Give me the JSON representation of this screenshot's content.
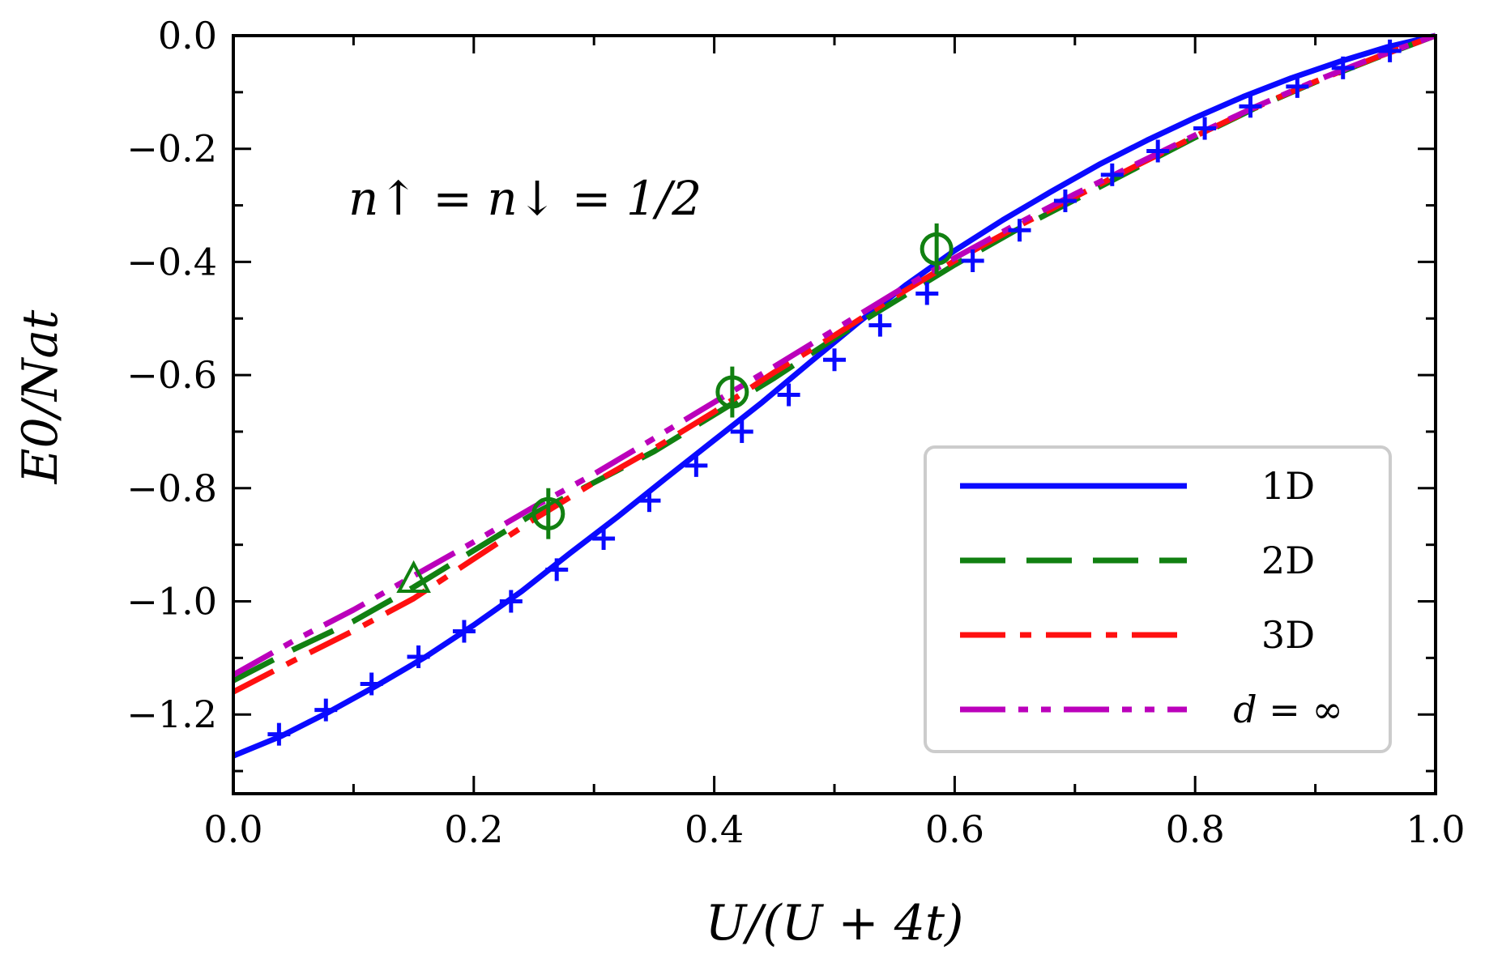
{
  "chart_data": {
    "type": "line",
    "xlabel": "U/(U + 4t)",
    "ylabel": "E0/Nat",
    "xlim": [
      0.0,
      1.0
    ],
    "ylim": [
      -1.34,
      0.0
    ],
    "xticks": [
      "0.0",
      "0.2",
      "0.4",
      "0.6",
      "0.8",
      "1.0"
    ],
    "yticks": [
      "0.0",
      "−0.2",
      "−0.4",
      "−0.6",
      "−0.8",
      "−1.0",
      "−1.2"
    ],
    "xtick_values": [
      0.0,
      0.2,
      0.4,
      0.6,
      0.8,
      1.0
    ],
    "ytick_values": [
      0.0,
      -0.2,
      -0.4,
      -0.6,
      -0.8,
      -1.0,
      -1.2
    ],
    "annotation": "n↑ = n↓ = 1/2",
    "legend_position": "lower-right",
    "series": [
      {
        "name": "1D",
        "color": "#0a0aff",
        "style": "solid",
        "x": [
          0.0,
          0.04,
          0.08,
          0.12,
          0.16,
          0.2,
          0.24,
          0.28,
          0.32,
          0.36,
          0.4,
          0.44,
          0.48,
          0.52,
          0.56,
          0.6,
          0.64,
          0.68,
          0.72,
          0.76,
          0.8,
          0.84,
          0.88,
          0.92,
          0.96,
          1.0
        ],
        "y": [
          -1.273,
          -1.238,
          -1.195,
          -1.148,
          -1.098,
          -1.042,
          -0.982,
          -0.915,
          -0.85,
          -0.782,
          -0.715,
          -0.648,
          -0.577,
          -0.507,
          -0.44,
          -0.38,
          -0.326,
          -0.276,
          -0.228,
          -0.185,
          -0.145,
          -0.108,
          -0.075,
          -0.046,
          -0.02,
          0.0
        ]
      },
      {
        "name": "2D",
        "color": "#118011",
        "style": "dashed",
        "x": [
          0.0,
          0.05,
          0.1,
          0.15,
          0.2,
          0.25,
          0.3,
          0.35,
          0.4,
          0.45,
          0.5,
          0.55,
          0.6,
          0.65,
          0.7,
          0.75,
          0.8,
          0.85,
          0.9,
          0.95,
          1.0
        ],
        "y": [
          -1.14,
          -1.085,
          -1.035,
          -0.975,
          -0.91,
          -0.845,
          -0.79,
          -0.735,
          -0.67,
          -0.605,
          -0.535,
          -0.47,
          -0.405,
          -0.345,
          -0.29,
          -0.235,
          -0.18,
          -0.128,
          -0.082,
          -0.04,
          0.0
        ]
      },
      {
        "name": "3D",
        "color": "#ff1010",
        "style": "dashdot",
        "x": [
          0.0,
          0.05,
          0.1,
          0.15,
          0.2,
          0.25,
          0.3,
          0.35,
          0.4,
          0.45,
          0.5,
          0.55,
          0.6,
          0.65,
          0.7,
          0.75,
          0.8,
          0.85,
          0.9,
          0.95,
          1.0
        ],
        "y": [
          -1.16,
          -1.105,
          -1.052,
          -0.995,
          -0.925,
          -0.855,
          -0.79,
          -0.73,
          -0.665,
          -0.595,
          -0.53,
          -0.462,
          -0.398,
          -0.34,
          -0.285,
          -0.231,
          -0.178,
          -0.127,
          -0.081,
          -0.039,
          0.0
        ]
      },
      {
        "name": "d = ∞",
        "color": "#bb00bb",
        "style": "dashdotdot",
        "x": [
          0.0,
          0.05,
          0.1,
          0.15,
          0.2,
          0.25,
          0.3,
          0.35,
          0.4,
          0.45,
          0.5,
          0.55,
          0.6,
          0.65,
          0.7,
          0.75,
          0.8,
          0.85,
          0.9,
          0.95,
          1.0
        ],
        "y": [
          -1.13,
          -1.07,
          -1.015,
          -0.955,
          -0.895,
          -0.833,
          -0.775,
          -0.712,
          -0.648,
          -0.585,
          -0.52,
          -0.455,
          -0.393,
          -0.335,
          -0.28,
          -0.228,
          -0.176,
          -0.126,
          -0.08,
          -0.038,
          0.0
        ]
      }
    ],
    "markers": [
      {
        "shape": "plus",
        "color": "#0a0aff",
        "x": [
          0.038,
          0.077,
          0.115,
          0.154,
          0.192,
          0.231,
          0.269,
          0.308,
          0.346,
          0.385,
          0.423,
          0.462,
          0.5,
          0.538,
          0.577,
          0.615,
          0.654,
          0.692,
          0.731,
          0.769,
          0.808,
          0.846,
          0.885,
          0.923,
          0.962
        ],
        "y": [
          -1.235,
          -1.192,
          -1.146,
          -1.098,
          -1.053,
          -1.0,
          -0.944,
          -0.889,
          -0.822,
          -0.76,
          -0.7,
          -0.635,
          -0.573,
          -0.512,
          -0.456,
          -0.398,
          -0.344,
          -0.292,
          -0.246,
          -0.204,
          -0.164,
          -0.125,
          -0.09,
          -0.057,
          -0.027
        ]
      },
      {
        "shape": "circle-errorbar",
        "color": "#118011",
        "x": [
          0.262,
          0.415,
          0.585
        ],
        "y": [
          -0.845,
          -0.63,
          -0.377
        ],
        "err": [
          0.045,
          0.045,
          0.045
        ]
      },
      {
        "shape": "triangle",
        "color": "#118011",
        "x": [
          0.15
        ],
        "y": [
          -0.965
        ]
      }
    ]
  }
}
